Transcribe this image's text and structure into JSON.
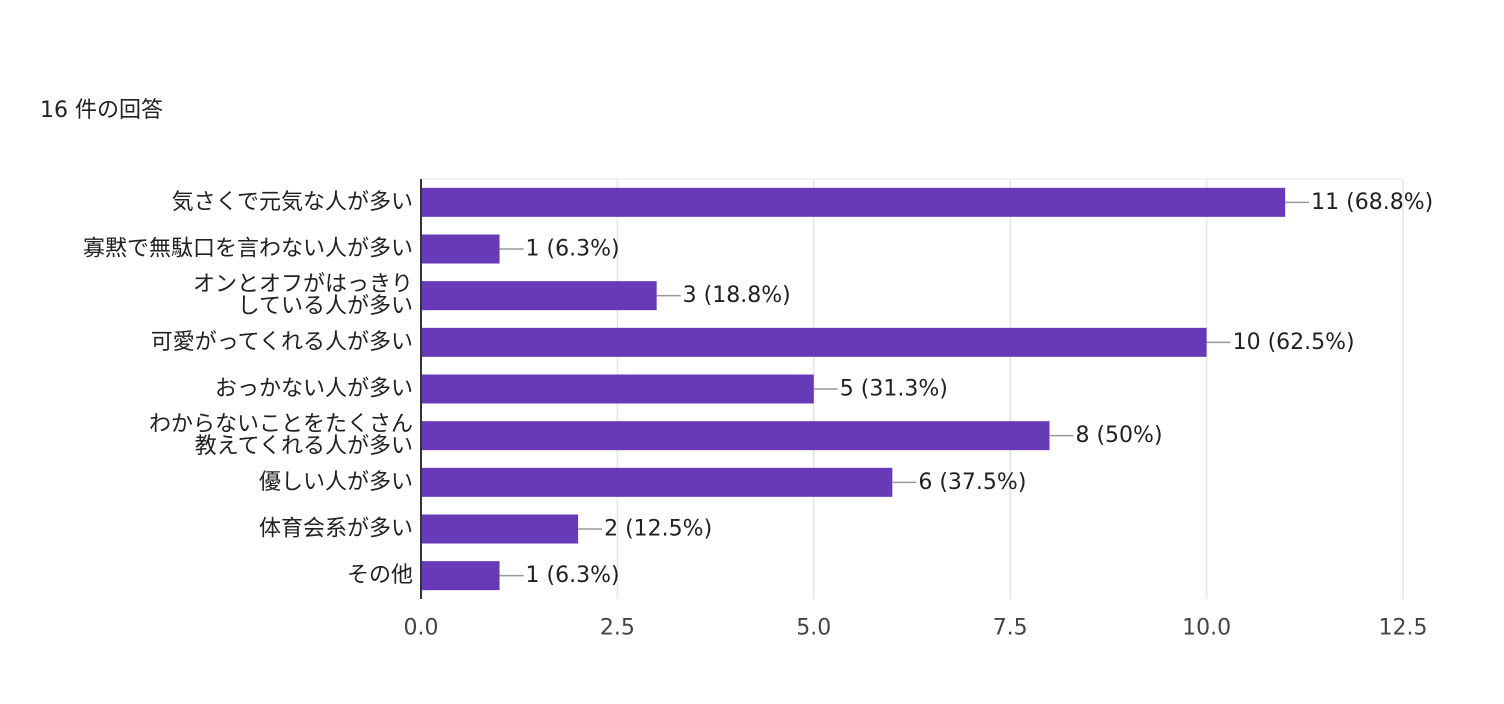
{
  "header": {
    "response_count": "16 件の回答"
  },
  "chart_data": {
    "type": "bar",
    "orientation": "horizontal",
    "title": "",
    "xlabel": "",
    "ylabel": "",
    "xlim": [
      0,
      12.5
    ],
    "ticks": [
      "0.0",
      "2.5",
      "5.0",
      "7.5",
      "10.0",
      "12.5"
    ],
    "tick_values": [
      0,
      2.5,
      5,
      7.5,
      10,
      12.5
    ],
    "grid": true,
    "bar_color": "#673ab7",
    "categories": [
      [
        "気さくで元気な人が多い"
      ],
      [
        "寡黙で無駄口を言わない人が多い"
      ],
      [
        "オンとオフがはっきり",
        "している人が多い"
      ],
      [
        "可愛がってくれる人が多い"
      ],
      [
        "おっかない人が多い"
      ],
      [
        "わからないことをたくさん",
        "教えてくれる人が多い"
      ],
      [
        "優しい人が多い"
      ],
      [
        "体育会系が多い"
      ],
      [
        "その他"
      ]
    ],
    "values": [
      11,
      1,
      3,
      10,
      5,
      8,
      6,
      2,
      1
    ],
    "data_labels": [
      "11 (68.8%)",
      "1 (6.3%)",
      "3 (18.8%)",
      "10 (62.5%)",
      "5 (31.3%)",
      "8 (50%)",
      "6 (37.5%)",
      "2 (12.5%)",
      "1 (6.3%)"
    ]
  }
}
